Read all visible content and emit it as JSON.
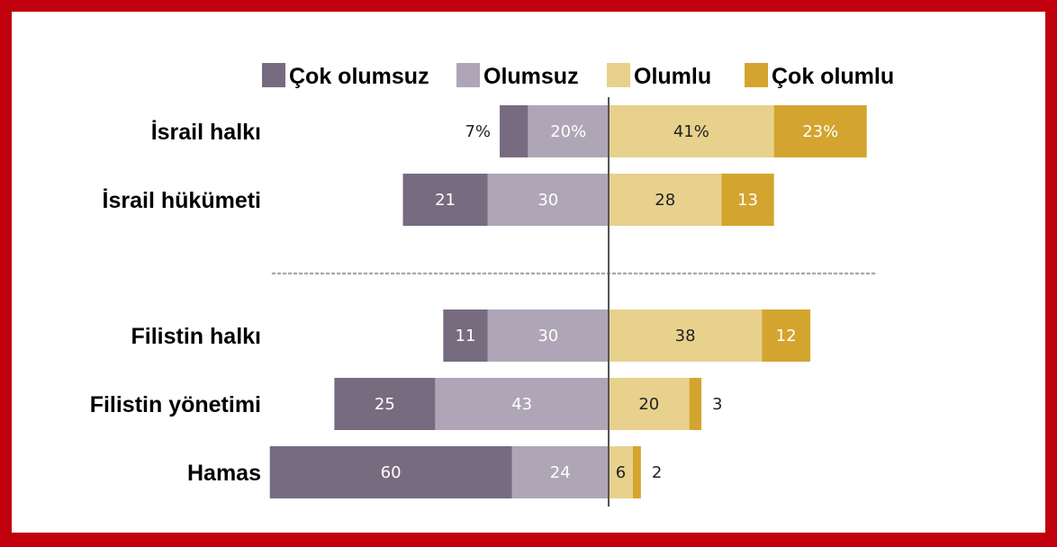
{
  "chart_data": {
    "type": "bar",
    "orientation": "horizontal-diverging",
    "title": "",
    "xlabel": "",
    "ylabel": "",
    "xlim": [
      -85,
      85
    ],
    "grid": false,
    "legend_position": "top",
    "categories": [
      "İsrail halkı",
      "İsrail hükümeti",
      "Filistin halkı",
      "Filistin yönetimi",
      "Hamas"
    ],
    "group_separator_after": 1,
    "series": [
      {
        "name": "Çok olumsuz",
        "side": "negative",
        "color": "#776b80",
        "label_color": "#ffffff",
        "values": [
          7,
          21,
          11,
          25,
          60
        ],
        "labels": [
          "7%",
          "21",
          "11",
          "25",
          "60"
        ]
      },
      {
        "name": "Olumsuz",
        "side": "negative",
        "color": "#aea6b6",
        "label_color": "#ffffff",
        "values": [
          20,
          30,
          30,
          43,
          24
        ],
        "labels": [
          "20%",
          "30",
          "30",
          "43",
          "24"
        ]
      },
      {
        "name": "Olumlu",
        "side": "positive",
        "color": "#e8d18d",
        "label_color": "#222222",
        "values": [
          41,
          28,
          38,
          20,
          6
        ],
        "labels": [
          "41%",
          "28",
          "38",
          "20",
          "6"
        ]
      },
      {
        "name": "Çok olumlu",
        "side": "positive",
        "color": "#d3a52f",
        "label_color": "#ffffff",
        "values": [
          23,
          13,
          12,
          3,
          2
        ],
        "labels": [
          "23%",
          "13",
          "12",
          "3",
          "2"
        ]
      }
    ]
  },
  "colors": {
    "border": "#c0000d",
    "background": "#ffffff",
    "axis": "#555555",
    "separator": "#aaaaaa"
  }
}
